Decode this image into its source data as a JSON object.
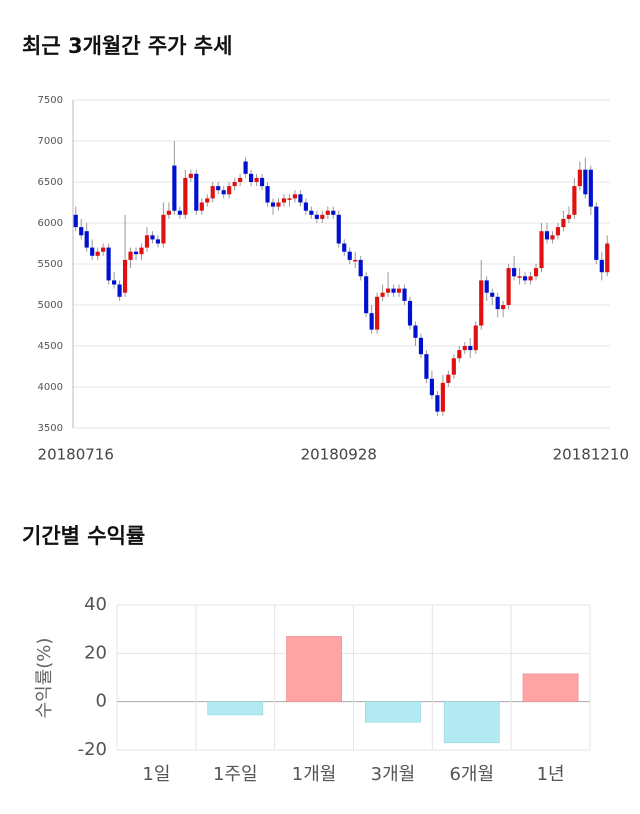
{
  "chart_data": [
    {
      "type": "candlestick",
      "title": "최근 3개월간 주가 추세",
      "categories": [
        "20180716",
        null,
        null,
        null,
        null,
        null,
        null,
        null,
        null,
        null,
        null,
        null,
        null,
        null,
        null,
        null,
        null,
        null,
        null,
        null,
        null,
        null,
        null,
        null,
        null,
        null,
        null,
        null,
        null,
        null,
        null,
        null,
        null,
        null,
        null,
        null,
        null,
        null,
        null,
        null,
        null,
        null,
        null,
        null,
        null,
        null,
        null,
        null,
        "20180928",
        null,
        null,
        null,
        null,
        null,
        null,
        null,
        null,
        null,
        null,
        null,
        null,
        null,
        null,
        null,
        null,
        null,
        null,
        null,
        null,
        null,
        null,
        null,
        null,
        null,
        null,
        null,
        null,
        null,
        null,
        null,
        null,
        null,
        null,
        null,
        null,
        null,
        null,
        null,
        null,
        null,
        null,
        null,
        null,
        null,
        "20181210",
        null,
        null,
        null
      ],
      "open": [
        6100,
        5950,
        5900,
        5700,
        5600,
        5650,
        5700,
        5300,
        5250,
        5150,
        5550,
        5650,
        5620,
        5700,
        5850,
        5800,
        5750,
        6100,
        6700,
        6150,
        6100,
        6550,
        6600,
        6150,
        6250,
        6300,
        6450,
        6400,
        6350,
        6450,
        6500,
        6750,
        6600,
        6500,
        6550,
        6450,
        6250,
        6200,
        6250,
        6300,
        6300,
        6350,
        6250,
        6150,
        6100,
        6050,
        6100,
        6150,
        6100,
        5750,
        5650,
        5550,
        5550,
        5350,
        4900,
        4700,
        5100,
        5150,
        5200,
        5150,
        5200,
        5050,
        4750,
        4600,
        4400,
        4100,
        3900,
        3700,
        4050,
        4150,
        4350,
        4450,
        4500,
        4450,
        4750,
        5300,
        5150,
        5100,
        4950,
        5000,
        5450,
        5350,
        5350,
        5300,
        5350,
        5450,
        5900,
        5800,
        5850,
        5950,
        6050,
        6100,
        6450,
        6650,
        6650,
        6200,
        5550,
        5400
      ],
      "high": [
        6200,
        6050,
        6000,
        5800,
        5700,
        5750,
        5750,
        5400,
        5300,
        6100,
        5700,
        5700,
        5750,
        5950,
        5900,
        5850,
        6250,
        6250,
        7000,
        6200,
        6650,
        6650,
        6650,
        6300,
        6350,
        6500,
        6500,
        6450,
        6500,
        6550,
        6600,
        6800,
        6650,
        6600,
        6600,
        6500,
        6300,
        6300,
        6350,
        6350,
        6400,
        6400,
        6300,
        6200,
        6150,
        6150,
        6200,
        6200,
        6150,
        5800,
        5700,
        5650,
        5600,
        5400,
        5000,
        5150,
        5250,
        5400,
        5250,
        5250,
        5250,
        5100,
        4800,
        4650,
        4450,
        4200,
        3950,
        4150,
        4200,
        4400,
        4500,
        4550,
        4600,
        4800,
        5550,
        5350,
        5200,
        5150,
        5050,
        5500,
        5600,
        5450,
        5400,
        5400,
        5500,
        6000,
        6000,
        5900,
        6000,
        6150,
        6200,
        6550,
        6750,
        6800,
        6700,
        6250,
        5650,
        5850
      ],
      "low": [
        5900,
        5800,
        5650,
        5550,
        5550,
        5600,
        5250,
        5200,
        5050,
        5100,
        5450,
        5550,
        5550,
        5650,
        5750,
        5700,
        5700,
        6050,
        6100,
        6050,
        6050,
        6500,
        6100,
        6100,
        6200,
        6250,
        6350,
        6300,
        6300,
        6400,
        6450,
        6550,
        6450,
        6450,
        6400,
        6200,
        6100,
        6150,
        6200,
        6200,
        6250,
        6200,
        6100,
        6050,
        6000,
        6000,
        6050,
        6050,
        5700,
        5600,
        5500,
        5450,
        5300,
        4850,
        4650,
        4650,
        5050,
        5100,
        5100,
        5100,
        5000,
        4700,
        4500,
        4350,
        4050,
        3850,
        3650,
        3650,
        4000,
        4100,
        4300,
        4400,
        4350,
        4400,
        4700,
        5050,
        5000,
        4850,
        4850,
        4950,
        5300,
        5250,
        5250,
        5250,
        5300,
        5400,
        5750,
        5750,
        5800,
        5900,
        6000,
        6050,
        6400,
        6300,
        6100,
        5500,
        5300,
        5350
      ],
      "close": [
        5950,
        5850,
        5700,
        5600,
        5650,
        5700,
        5300,
        5250,
        5100,
        5550,
        5650,
        5620,
        5700,
        5850,
        5800,
        5750,
        6100,
        6150,
        6150,
        6100,
        6550,
        6600,
        6150,
        6250,
        6300,
        6450,
        6400,
        6350,
        6450,
        6500,
        6550,
        6600,
        6500,
        6550,
        6450,
        6250,
        6200,
        6250,
        6300,
        6300,
        6350,
        6250,
        6150,
        6100,
        6050,
        6100,
        6150,
        6100,
        5750,
        5650,
        5550,
        5550,
        5350,
        4900,
        4700,
        5100,
        5150,
        5200,
        5150,
        5200,
        5050,
        4750,
        4600,
        4400,
        4100,
        3900,
        3700,
        4050,
        4150,
        4350,
        4450,
        4500,
        4450,
        4750,
        5300,
        5150,
        5100,
        4950,
        5000,
        5450,
        5350,
        5350,
        5300,
        5350,
        5450,
        5900,
        5800,
        5850,
        5950,
        6050,
        6100,
        6450,
        6650,
        6350,
        6200,
        5550,
        5400,
        5750
      ],
      "up_color": "#e01010",
      "down_color": "#0010d0",
      "ylim": [
        3500,
        7500
      ],
      "yticks": [
        3500,
        4000,
        4500,
        5000,
        5500,
        6000,
        6500,
        7000,
        7500
      ],
      "grid": true
    },
    {
      "type": "bar",
      "title": "기간별 수익률",
      "y_label": "수익률(%)",
      "categories": [
        "1일",
        "1주일",
        "1개월",
        "3개월",
        "6개월",
        "1년"
      ],
      "values": [
        0,
        -5.5,
        27,
        -8.5,
        -17,
        11.5
      ],
      "positive_color": "#ffa4a4",
      "negative_color": "#b3eaf2",
      "ylim": [
        -20,
        40
      ],
      "yticks": [
        -20,
        0,
        20,
        40
      ],
      "grid": true
    }
  ]
}
